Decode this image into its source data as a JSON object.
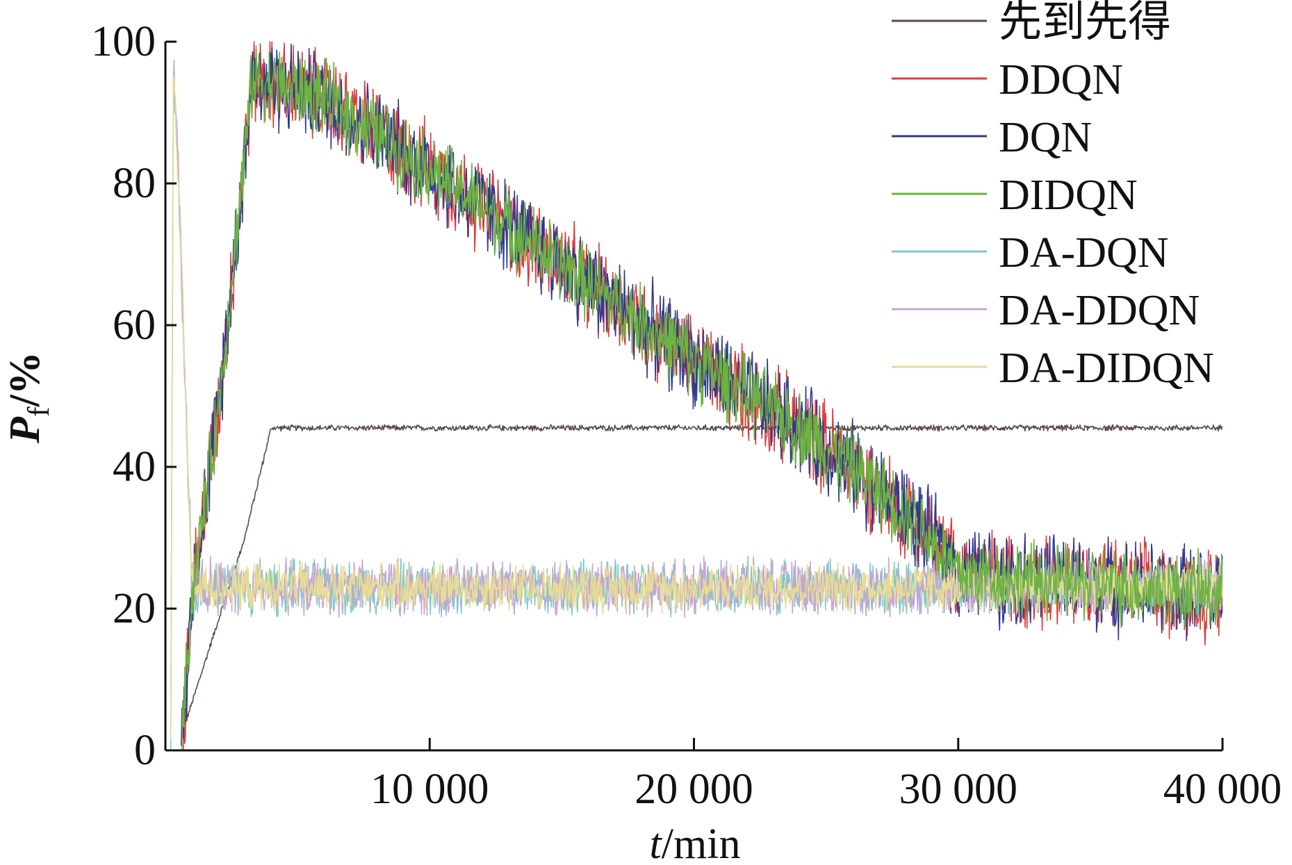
{
  "chart_data": {
    "type": "line",
    "title": "",
    "xlabel_var": "t",
    "xlabel_unit": "/min",
    "ylabel_var": "P",
    "ylabel_sub": "f",
    "ylabel_unit": "/%",
    "xlim": [
      0,
      40000
    ],
    "ylim": [
      0,
      100
    ],
    "x_ticks": [
      10000,
      20000,
      30000,
      40000
    ],
    "x_tick_labels": [
      "10 000",
      "20 000",
      "30 000",
      "40 000"
    ],
    "y_ticks": [
      0,
      20,
      40,
      60,
      80,
      100
    ],
    "y_tick_labels": [
      "0",
      "20",
      "40",
      "60",
      "80",
      "100"
    ],
    "grid": false,
    "legend_position": "top-right",
    "series": [
      {
        "name": "先到先得",
        "color": "#5a4a4a",
        "noise": 0.35,
        "points": [
          [
            600,
            2
          ],
          [
            3000,
            30
          ],
          [
            4000,
            45.5
          ],
          [
            40000,
            45.5
          ]
        ]
      },
      {
        "name": "DDQN",
        "color": "#e03b3b",
        "noise": 5.5,
        "points": [
          [
            600,
            0
          ],
          [
            1000,
            22
          ],
          [
            2000,
            48
          ],
          [
            3300,
            95
          ],
          [
            6000,
            92
          ],
          [
            10000,
            82
          ],
          [
            20000,
            55
          ],
          [
            25000,
            43
          ],
          [
            28500,
            32
          ],
          [
            30000,
            25
          ],
          [
            40000,
            22
          ]
        ]
      },
      {
        "name": "DQN",
        "color": "#2f3a8f",
        "noise": 5.5,
        "points": [
          [
            600,
            0
          ],
          [
            1000,
            22
          ],
          [
            2000,
            48
          ],
          [
            3300,
            95
          ],
          [
            6000,
            92
          ],
          [
            10000,
            82
          ],
          [
            20000,
            55
          ],
          [
            25000,
            43
          ],
          [
            28500,
            32
          ],
          [
            30000,
            25
          ],
          [
            40000,
            22
          ]
        ]
      },
      {
        "name": "DIDQN",
        "color": "#6db33f",
        "noise": 4.5,
        "points": [
          [
            600,
            0
          ],
          [
            1000,
            22
          ],
          [
            2000,
            48
          ],
          [
            3300,
            95
          ],
          [
            6000,
            92
          ],
          [
            10000,
            82
          ],
          [
            20000,
            55
          ],
          [
            25000,
            43
          ],
          [
            28500,
            32
          ],
          [
            30000,
            25
          ],
          [
            40000,
            22
          ]
        ]
      },
      {
        "name": "DA-DQN",
        "color": "#7ec9c9",
        "noise": 3.2,
        "points": [
          [
            200,
            0
          ],
          [
            300,
            98
          ],
          [
            600,
            70
          ],
          [
            1000,
            23
          ],
          [
            40000,
            23
          ]
        ]
      },
      {
        "name": "DA-DDQN",
        "color": "#c7a5d6",
        "noise": 3.2,
        "points": [
          [
            200,
            0
          ],
          [
            300,
            98
          ],
          [
            600,
            70
          ],
          [
            1000,
            23
          ],
          [
            40000,
            23
          ]
        ]
      },
      {
        "name": "DA-DIDQN",
        "color": "#e8dc94",
        "noise": 2.8,
        "points": [
          [
            200,
            0
          ],
          [
            300,
            98
          ],
          [
            600,
            70
          ],
          [
            1000,
            23
          ],
          [
            40000,
            23
          ]
        ]
      }
    ]
  }
}
